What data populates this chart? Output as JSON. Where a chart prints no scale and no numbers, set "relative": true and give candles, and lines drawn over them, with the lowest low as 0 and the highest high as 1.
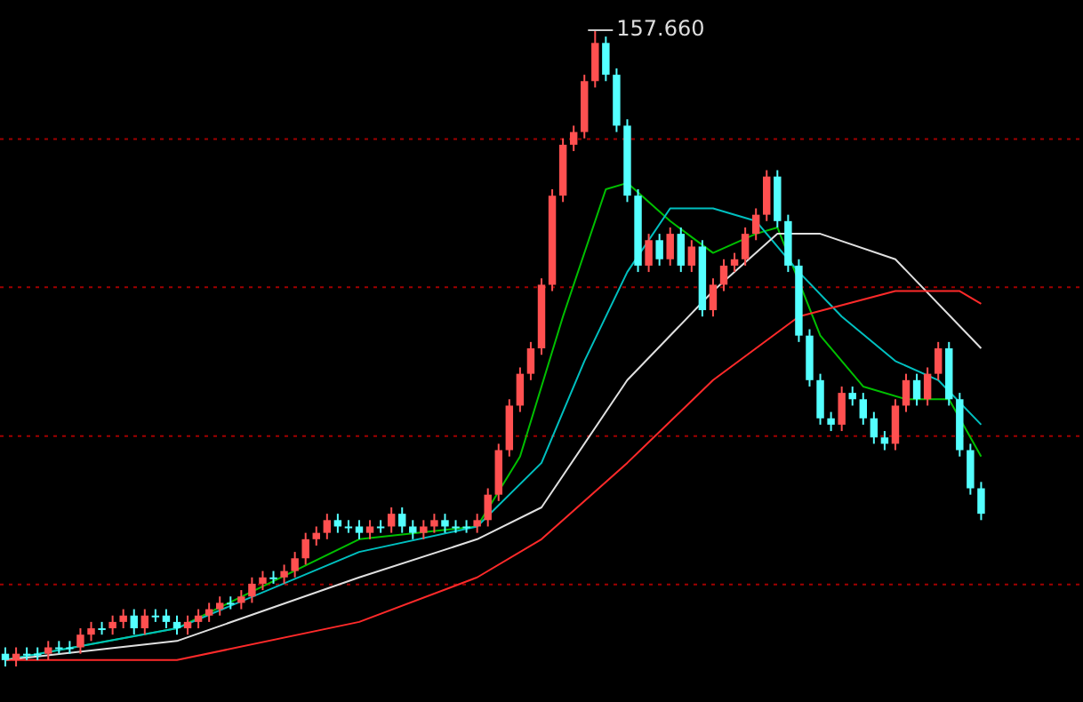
{
  "chart_data": {
    "type": "candlestick",
    "relative": true,
    "categories": [
      null,
      null,
      null,
      null,
      null,
      null,
      null,
      null,
      null,
      null,
      null,
      null,
      null,
      null,
      null,
      null,
      null,
      null,
      null,
      null,
      null,
      null,
      null,
      null,
      null,
      null,
      null,
      null,
      null,
      null,
      null,
      null,
      null,
      null,
      null,
      null,
      null,
      null,
      null,
      null,
      null,
      null,
      null,
      null,
      null,
      null,
      null,
      null,
      null,
      null,
      null,
      null,
      null,
      null,
      null,
      null,
      null,
      null,
      null,
      null,
      null,
      null,
      null,
      null,
      null,
      null,
      null,
      null,
      null,
      null,
      null,
      null,
      null,
      null,
      null,
      null,
      null,
      null,
      null,
      null,
      null,
      null,
      null,
      null,
      null,
      null,
      null,
      null,
      null,
      null,
      null,
      null
    ],
    "ohlc": [
      [
        0.02,
        0.03,
        0,
        0.01
      ],
      [
        0.01,
        0.03,
        0,
        0.02
      ],
      [
        0.02,
        0.03,
        0.01,
        0.02
      ],
      [
        0.02,
        0.03,
        0.01,
        0.02
      ],
      [
        0.02,
        0.04,
        0.01,
        0.03
      ],
      [
        0.03,
        0.04,
        0.02,
        0.03
      ],
      [
        0.03,
        0.04,
        0.02,
        0.03
      ],
      [
        0.03,
        0.06,
        0.02,
        0.05
      ],
      [
        0.05,
        0.07,
        0.04,
        0.06
      ],
      [
        0.06,
        0.07,
        0.05,
        0.06
      ],
      [
        0.06,
        0.08,
        0.05,
        0.07
      ],
      [
        0.07,
        0.09,
        0.06,
        0.08
      ],
      [
        0.08,
        0.09,
        0.05,
        0.06
      ],
      [
        0.06,
        0.09,
        0.05,
        0.08
      ],
      [
        0.08,
        0.09,
        0.07,
        0.08
      ],
      [
        0.08,
        0.09,
        0.06,
        0.07
      ],
      [
        0.07,
        0.08,
        0.05,
        0.06
      ],
      [
        0.06,
        0.08,
        0.05,
        0.07
      ],
      [
        0.07,
        0.09,
        0.06,
        0.08
      ],
      [
        0.08,
        0.1,
        0.07,
        0.09
      ],
      [
        0.09,
        0.11,
        0.08,
        0.1
      ],
      [
        0.1,
        0.11,
        0.09,
        0.1
      ],
      [
        0.1,
        0.12,
        0.09,
        0.11
      ],
      [
        0.11,
        0.14,
        0.1,
        0.13
      ],
      [
        0.13,
        0.15,
        0.12,
        0.14
      ],
      [
        0.14,
        0.15,
        0.13,
        0.14
      ],
      [
        0.14,
        0.16,
        0.13,
        0.15
      ],
      [
        0.15,
        0.18,
        0.14,
        0.17
      ],
      [
        0.17,
        0.21,
        0.16,
        0.2
      ],
      [
        0.2,
        0.22,
        0.19,
        0.21
      ],
      [
        0.21,
        0.24,
        0.2,
        0.23
      ],
      [
        0.23,
        0.24,
        0.21,
        0.22
      ],
      [
        0.22,
        0.23,
        0.21,
        0.22
      ],
      [
        0.22,
        0.23,
        0.2,
        0.21
      ],
      [
        0.21,
        0.23,
        0.2,
        0.22
      ],
      [
        0.22,
        0.23,
        0.21,
        0.22
      ],
      [
        0.22,
        0.25,
        0.21,
        0.24
      ],
      [
        0.24,
        0.25,
        0.21,
        0.22
      ],
      [
        0.22,
        0.23,
        0.2,
        0.21
      ],
      [
        0.21,
        0.23,
        0.2,
        0.22
      ],
      [
        0.22,
        0.24,
        0.21,
        0.23
      ],
      [
        0.23,
        0.24,
        0.21,
        0.22
      ],
      [
        0.22,
        0.23,
        0.21,
        0.22
      ],
      [
        0.22,
        0.23,
        0.21,
        0.22
      ],
      [
        0.22,
        0.24,
        0.21,
        0.23
      ],
      [
        0.23,
        0.28,
        0.22,
        0.27
      ],
      [
        0.27,
        0.35,
        0.26,
        0.34
      ],
      [
        0.34,
        0.42,
        0.33,
        0.41
      ],
      [
        0.41,
        0.47,
        0.4,
        0.46
      ],
      [
        0.46,
        0.51,
        0.45,
        0.5
      ],
      [
        0.5,
        0.61,
        0.49,
        0.6
      ],
      [
        0.6,
        0.75,
        0.59,
        0.74
      ],
      [
        0.74,
        0.83,
        0.73,
        0.82
      ],
      [
        0.82,
        0.85,
        0.81,
        0.84
      ],
      [
        0.84,
        0.93,
        0.83,
        0.92
      ],
      [
        0.92,
        1,
        0.91,
        0.98
      ],
      [
        0.98,
        0.99,
        0.92,
        0.93
      ],
      [
        0.93,
        0.94,
        0.84,
        0.85
      ],
      [
        0.85,
        0.86,
        0.73,
        0.74
      ],
      [
        0.74,
        0.75,
        0.62,
        0.63
      ],
      [
        0.63,
        0.68,
        0.62,
        0.67
      ],
      [
        0.67,
        0.68,
        0.63,
        0.64
      ],
      [
        0.64,
        0.69,
        0.63,
        0.68
      ],
      [
        0.68,
        0.69,
        0.62,
        0.63
      ],
      [
        0.63,
        0.67,
        0.62,
        0.66
      ],
      [
        0.66,
        0.67,
        0.55,
        0.56
      ],
      [
        0.56,
        0.61,
        0.55,
        0.6
      ],
      [
        0.6,
        0.64,
        0.59,
        0.63
      ],
      [
        0.63,
        0.65,
        0.62,
        0.64
      ],
      [
        0.64,
        0.69,
        0.63,
        0.68
      ],
      [
        0.68,
        0.72,
        0.67,
        0.71
      ],
      [
        0.71,
        0.78,
        0.7,
        0.77
      ],
      [
        0.77,
        0.78,
        0.69,
        0.7
      ],
      [
        0.7,
        0.71,
        0.62,
        0.63
      ],
      [
        0.63,
        0.64,
        0.51,
        0.52
      ],
      [
        0.52,
        0.53,
        0.44,
        0.45
      ],
      [
        0.45,
        0.46,
        0.38,
        0.39
      ],
      [
        0.39,
        0.4,
        0.37,
        0.38
      ],
      [
        0.38,
        0.44,
        0.37,
        0.43
      ],
      [
        0.43,
        0.44,
        0.41,
        0.42
      ],
      [
        0.42,
        0.43,
        0.38,
        0.39
      ],
      [
        0.39,
        0.4,
        0.35,
        0.36
      ],
      [
        0.36,
        0.37,
        0.34,
        0.35
      ],
      [
        0.35,
        0.42,
        0.34,
        0.41
      ],
      [
        0.41,
        0.46,
        0.4,
        0.45
      ],
      [
        0.45,
        0.46,
        0.41,
        0.42
      ],
      [
        0.42,
        0.47,
        0.41,
        0.46
      ],
      [
        0.46,
        0.51,
        0.45,
        0.5
      ],
      [
        0.5,
        0.51,
        0.41,
        0.42
      ],
      [
        0.42,
        0.43,
        0.33,
        0.34
      ],
      [
        0.34,
        0.35,
        0.27,
        0.28
      ],
      [
        0.28,
        0.29,
        0.23,
        0.24
      ]
    ],
    "colors": [
      "#54ffff",
      "#ff5050",
      "#54ffff",
      "#54ffff",
      "#ff5050",
      "#54ffff",
      "#54ffff",
      "#ff5050",
      "#ff5050",
      "#54ffff",
      "#ff5050",
      "#ff5050",
      "#54ffff",
      "#ff5050",
      "#54ffff",
      "#54ffff",
      "#54ffff",
      "#ff5050",
      "#ff5050",
      "#ff5050",
      "#ff5050",
      "#54ffff",
      "#ff5050",
      "#ff5050",
      "#ff5050",
      "#54ffff",
      "#ff5050",
      "#ff5050",
      "#ff5050",
      "#ff5050",
      "#ff5050",
      "#54ffff",
      "#54ffff",
      "#54ffff",
      "#ff5050",
      "#54ffff",
      "#ff5050",
      "#54ffff",
      "#54ffff",
      "#ff5050",
      "#ff5050",
      "#54ffff",
      "#54ffff",
      "#54ffff",
      "#ff5050",
      "#ff5050",
      "#ff5050",
      "#ff5050",
      "#ff5050",
      "#ff5050",
      "#ff5050",
      "#ff5050",
      "#ff5050",
      "#ff5050",
      "#ff5050",
      "#ff5050",
      "#54ffff",
      "#54ffff",
      "#54ffff",
      "#54ffff",
      "#ff5050",
      "#54ffff",
      "#ff5050",
      "#54ffff",
      "#ff5050",
      "#54ffff",
      "#ff5050",
      "#ff5050",
      "#ff5050",
      "#ff5050",
      "#ff5050",
      "#ff5050",
      "#54ffff",
      "#54ffff",
      "#54ffff",
      "#54ffff",
      "#54ffff",
      "#54ffff",
      "#ff5050",
      "#54ffff",
      "#54ffff",
      "#54ffff",
      "#54ffff",
      "#ff5050",
      "#ff5050",
      "#54ffff",
      "#ff5050",
      "#ff5050",
      "#54ffff",
      "#54ffff",
      "#54ffff",
      "#54ffff"
    ],
    "series": [
      {
        "type": "line",
        "color": "#ff2a2a",
        "values": [
          0.01,
          null,
          null,
          null,
          null,
          null,
          null,
          null,
          null,
          null,
          null,
          null,
          null,
          null,
          null,
          null,
          0.01,
          null,
          null,
          null,
          null,
          null,
          null,
          null,
          null,
          null,
          null,
          null,
          null,
          null,
          null,
          null,
          null,
          0.07,
          null,
          null,
          null,
          null,
          null,
          null,
          null,
          null,
          null,
          null,
          0.14,
          null,
          null,
          null,
          null,
          null,
          0.2,
          null,
          null,
          null,
          null,
          null,
          null,
          null,
          0.32,
          null,
          null,
          null,
          null,
          null,
          null,
          null,
          0.45,
          null,
          null,
          null,
          null,
          null,
          null,
          null,
          0.55,
          null,
          null,
          null,
          null,
          null,
          null,
          null,
          null,
          0.59,
          null,
          null,
          null,
          null,
          null,
          0.59,
          null,
          0.57
        ]
      },
      {
        "type": "line",
        "color": "#e0e0e0",
        "values": [
          0.01,
          null,
          null,
          null,
          null,
          null,
          null,
          null,
          null,
          null,
          null,
          null,
          null,
          null,
          null,
          null,
          0.04,
          null,
          null,
          null,
          null,
          null,
          null,
          null,
          null,
          null,
          null,
          null,
          null,
          null,
          null,
          null,
          null,
          0.14,
          null,
          null,
          null,
          null,
          null,
          null,
          null,
          null,
          null,
          null,
          0.2,
          null,
          null,
          null,
          null,
          null,
          0.25,
          null,
          null,
          null,
          null,
          null,
          null,
          null,
          0.45,
          null,
          null,
          null,
          null,
          null,
          null,
          null,
          0.59,
          null,
          null,
          null,
          null,
          null,
          0.68,
          null,
          null,
          null,
          0.68,
          null,
          null,
          null,
          null,
          null,
          null,
          0.64,
          null,
          null,
          null,
          null,
          null,
          null,
          null,
          0.5
        ]
      },
      {
        "type": "line",
        "color": "#00c0c0",
        "values": [
          0.01,
          null,
          null,
          null,
          null,
          null,
          null,
          null,
          null,
          null,
          null,
          null,
          null,
          null,
          null,
          null,
          0.06,
          null,
          null,
          null,
          null,
          null,
          null,
          null,
          null,
          null,
          null,
          null,
          null,
          null,
          null,
          null,
          null,
          0.18,
          null,
          null,
          null,
          null,
          null,
          null,
          null,
          null,
          null,
          null,
          0.22,
          null,
          null,
          null,
          null,
          null,
          0.32,
          null,
          null,
          null,
          0.48,
          null,
          null,
          null,
          0.62,
          null,
          null,
          null,
          0.72,
          null,
          null,
          null,
          0.72,
          null,
          null,
          null,
          0.7,
          null,
          null,
          null,
          0.62,
          null,
          null,
          null,
          0.55,
          null,
          null,
          null,
          null,
          0.48,
          null,
          null,
          null,
          0.45,
          null,
          null,
          null,
          0.38
        ]
      },
      {
        "type": "line",
        "color": "#00c000",
        "values": [
          0.01,
          null,
          null,
          null,
          null,
          null,
          null,
          null,
          null,
          null,
          null,
          null,
          null,
          null,
          null,
          null,
          0.06,
          null,
          null,
          null,
          null,
          null,
          null,
          null,
          null,
          null,
          null,
          null,
          null,
          null,
          null,
          null,
          null,
          0.2,
          null,
          null,
          null,
          null,
          null,
          null,
          null,
          null,
          null,
          null,
          0.22,
          null,
          null,
          null,
          0.33,
          null,
          null,
          null,
          0.55,
          null,
          null,
          null,
          0.75,
          null,
          0.76,
          null,
          null,
          null,
          0.7,
          null,
          null,
          null,
          0.65,
          null,
          null,
          null,
          0.68,
          null,
          0.69,
          null,
          null,
          null,
          0.52,
          null,
          null,
          null,
          0.44,
          null,
          null,
          null,
          0.42,
          null,
          null,
          null,
          0.42,
          null,
          null,
          0.33
        ]
      }
    ],
    "ref_lines": [
      {
        "axis": "y",
        "value": 0.829,
        "color": "#a00000",
        "line_style": "dotted"
      },
      {
        "axis": "y",
        "value": 0.596,
        "color": "#a00000",
        "line_style": "dotted"
      },
      {
        "axis": "y",
        "value": 0.362,
        "color": "#a00000",
        "line_style": "dotted"
      },
      {
        "axis": "y",
        "value": 0.129,
        "color": "#a00000",
        "line_style": "dotted"
      }
    ],
    "annotations": [
      "157.660"
    ]
  }
}
